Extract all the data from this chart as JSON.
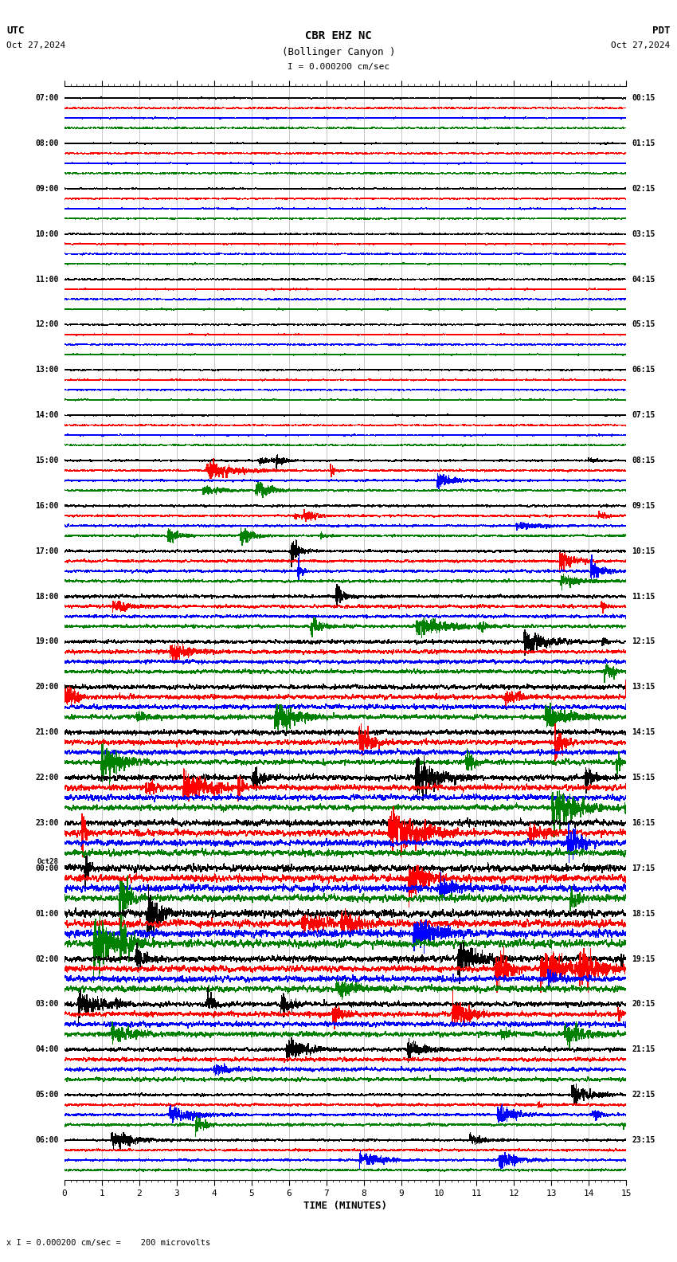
{
  "title_line1": "CBR EHZ NC",
  "title_line2": "(Bollinger Canyon )",
  "title_scale": "I = 0.000200 cm/sec",
  "utc_label": "UTC",
  "utc_date": "Oct 27,2024",
  "pdt_label": "PDT",
  "pdt_date": "Oct 27,2024",
  "xlabel": "TIME (MINUTES)",
  "footer": "x I = 0.000200 cm/sec =    200 microvolts",
  "bg_color": "#ffffff",
  "trace_colors": [
    "#000000",
    "#ff0000",
    "#0000ff",
    "#008000"
  ],
  "n_hour_rows": 24,
  "n_minutes": 15,
  "samples_per_minute": 200,
  "left_labels_utc": [
    "07:00",
    "08:00",
    "09:00",
    "10:00",
    "11:00",
    "12:00",
    "13:00",
    "14:00",
    "15:00",
    "16:00",
    "17:00",
    "18:00",
    "19:00",
    "20:00",
    "21:00",
    "22:00",
    "23:00",
    "Oct28\n00:00",
    "01:00",
    "02:00",
    "03:00",
    "04:00",
    "05:00",
    "06:00"
  ],
  "right_labels_pdt": [
    "00:15",
    "01:15",
    "02:15",
    "03:15",
    "04:15",
    "05:15",
    "06:15",
    "07:15",
    "08:15",
    "09:15",
    "10:15",
    "11:15",
    "12:15",
    "13:15",
    "14:15",
    "15:15",
    "16:15",
    "17:15",
    "18:15",
    "19:15",
    "20:15",
    "21:15",
    "22:15",
    "23:15"
  ],
  "grid_color": "#888888",
  "xmin": 0,
  "xmax": 15,
  "noise_base": 0.018,
  "noise_scale_factors": [
    0.5,
    0.5,
    0.5,
    0.5,
    0.5,
    0.5,
    0.5,
    0.5,
    0.7,
    0.8,
    1.0,
    1.2,
    1.5,
    1.8,
    2.0,
    2.2,
    2.5,
    2.8,
    3.0,
    2.5,
    2.0,
    1.5,
    1.0,
    0.8
  ]
}
